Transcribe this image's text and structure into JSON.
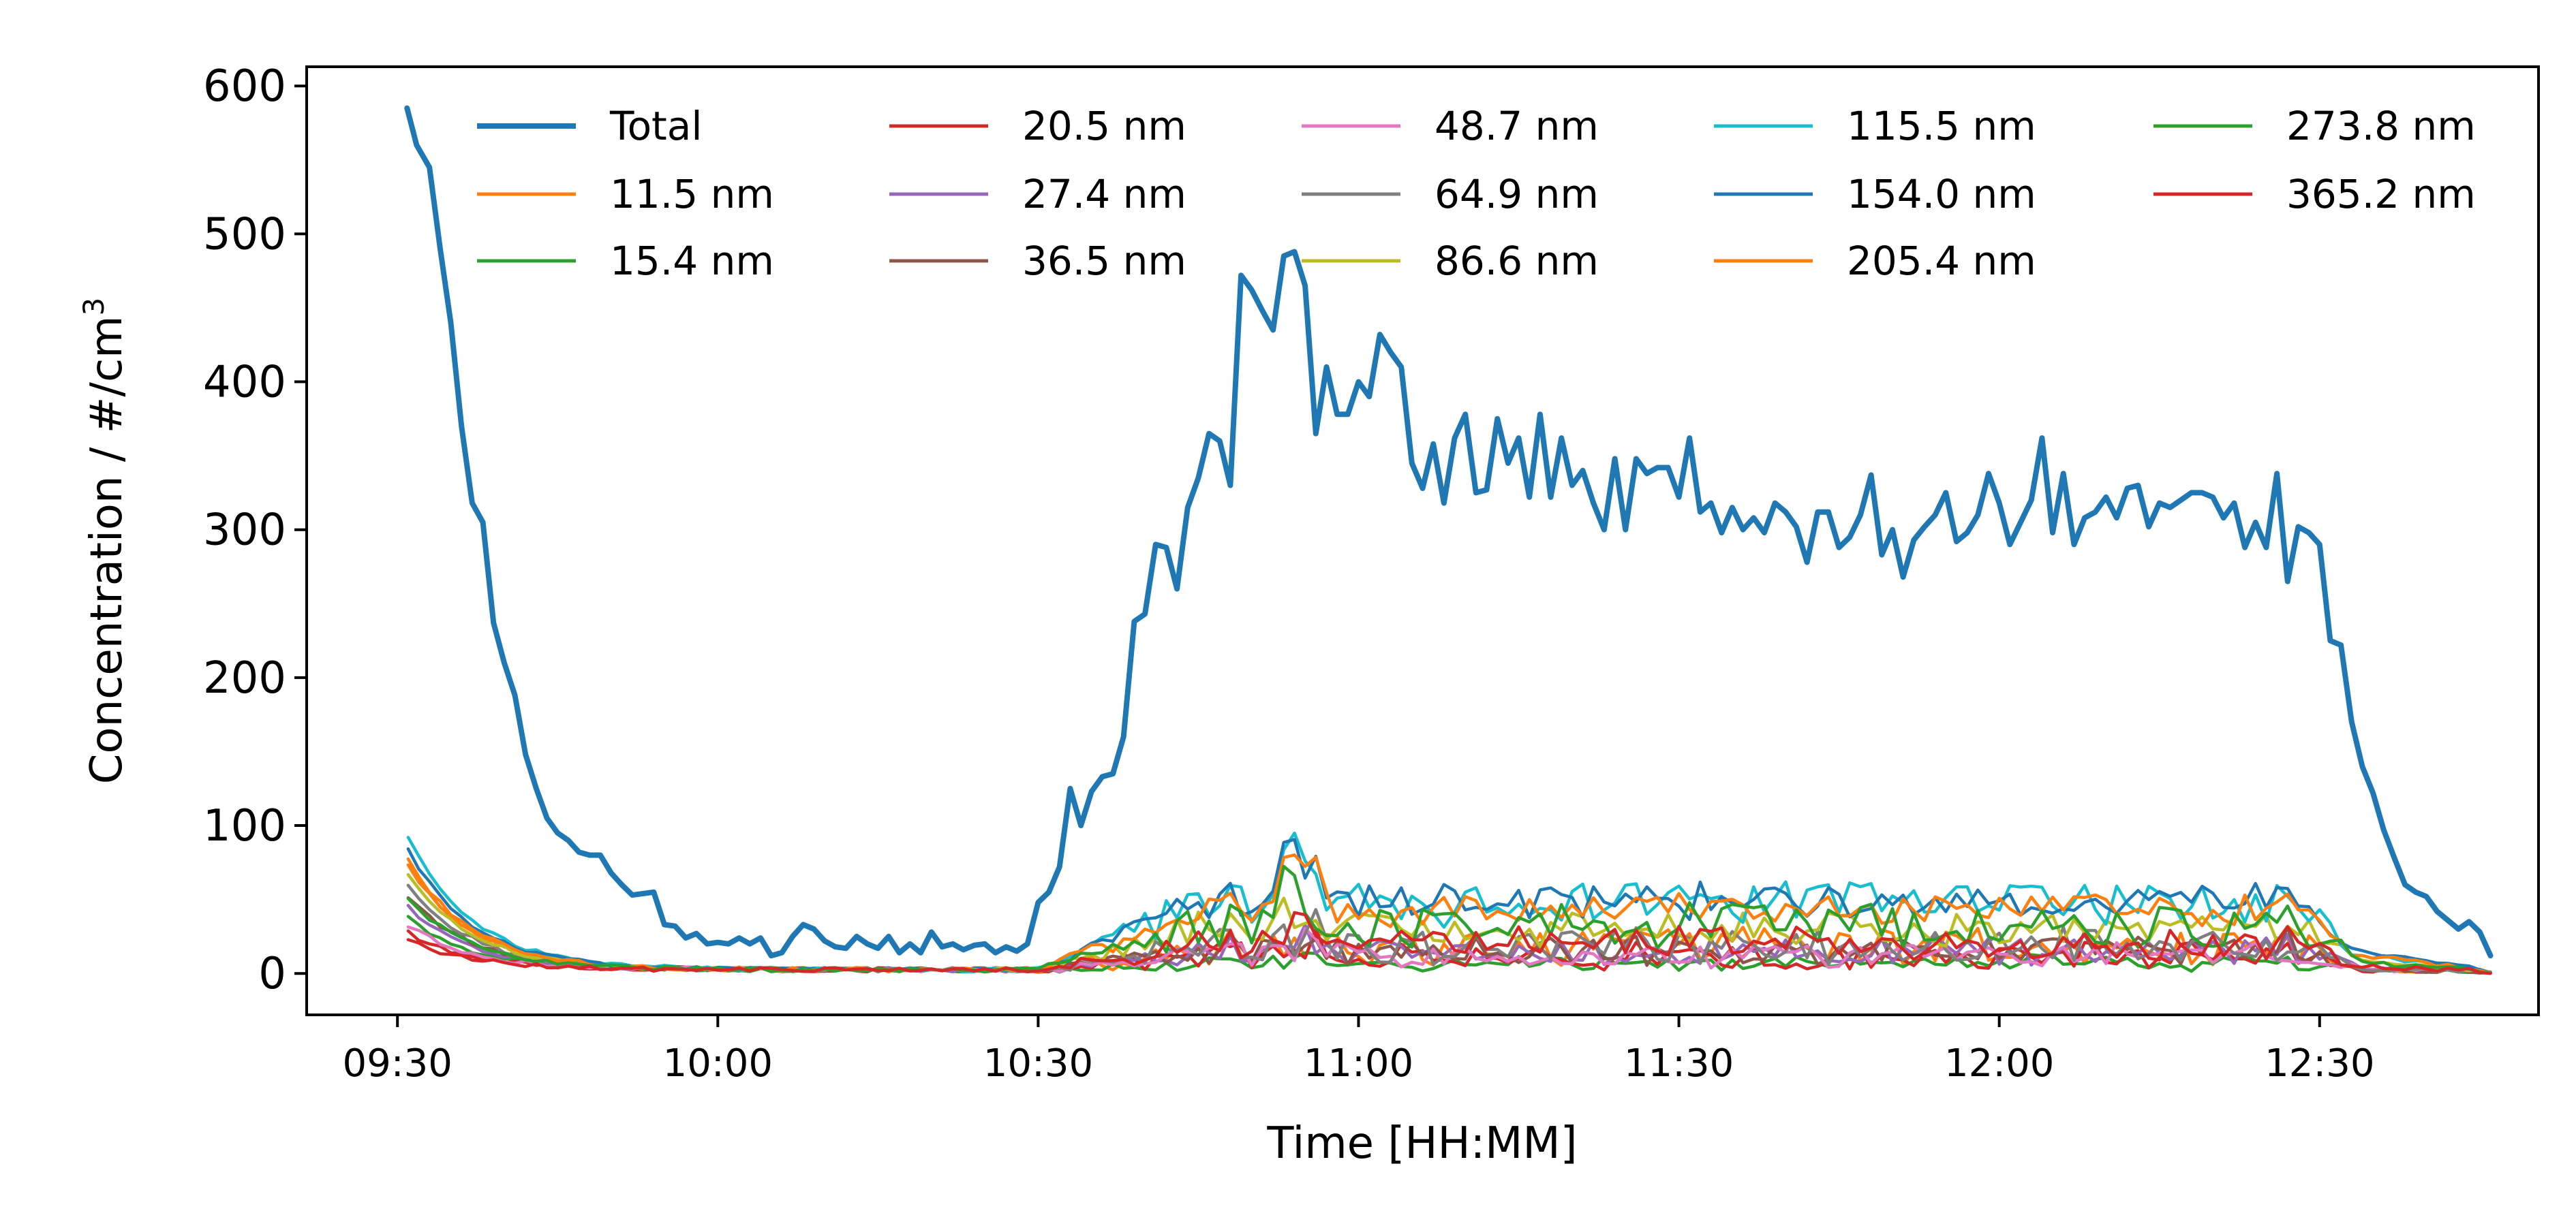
{
  "chart_data": {
    "type": "line",
    "xlabel": "Time [HH:MM]",
    "ylabel": "Concentration / #/cm",
    "ylabel_superscript": "3",
    "x_ticks": [
      "09:30",
      "10:00",
      "10:30",
      "11:00",
      "11:30",
      "12:00",
      "12:30"
    ],
    "x_tick_minutes": [
      0,
      30,
      60,
      90,
      120,
      150,
      180
    ],
    "xlim": [
      -8.5,
      200.5
    ],
    "ylim": [
      -28,
      613
    ],
    "y_ticks": [
      0,
      100,
      200,
      300,
      400,
      500,
      600
    ],
    "legend_position": "top (inside), 5 columns",
    "series": [
      {
        "name": "Total",
        "color": "#1f77b4",
        "emphasis": true,
        "points": [
          [
            0.9,
            585
          ],
          [
            1.8,
            560
          ],
          [
            3,
            545
          ],
          [
            4,
            490
          ],
          [
            5,
            440
          ],
          [
            6,
            370
          ],
          [
            7,
            318
          ],
          [
            8,
            305
          ],
          [
            9,
            237
          ],
          [
            10,
            210
          ],
          [
            11,
            188
          ],
          [
            12,
            148
          ],
          [
            13,
            125
          ],
          [
            14,
            105
          ],
          [
            15,
            95
          ],
          [
            16,
            90
          ],
          [
            17,
            82
          ],
          [
            18,
            80
          ],
          [
            19,
            80
          ],
          [
            20,
            68
          ],
          [
            21,
            60
          ],
          [
            22,
            53
          ],
          [
            23,
            54
          ],
          [
            24,
            55
          ],
          [
            25,
            33
          ],
          [
            26,
            32
          ],
          [
            27,
            24
          ],
          [
            28,
            27
          ],
          [
            29,
            20
          ],
          [
            30,
            21
          ],
          [
            31,
            20
          ],
          [
            32,
            24
          ],
          [
            33,
            20
          ],
          [
            34,
            24
          ],
          [
            35,
            12
          ],
          [
            36,
            14
          ],
          [
            37,
            25
          ],
          [
            38,
            33
          ],
          [
            39,
            30
          ],
          [
            40,
            22
          ],
          [
            41,
            18
          ],
          [
            42,
            17
          ],
          [
            43,
            25
          ],
          [
            44,
            20
          ],
          [
            45,
            17
          ],
          [
            46,
            25
          ],
          [
            47,
            14
          ],
          [
            48,
            20
          ],
          [
            49,
            14
          ],
          [
            50,
            28
          ],
          [
            51,
            18
          ],
          [
            52,
            20
          ],
          [
            53,
            16
          ],
          [
            54,
            19
          ],
          [
            55,
            20
          ],
          [
            56,
            14
          ],
          [
            57,
            18
          ],
          [
            58,
            15
          ],
          [
            59,
            20
          ],
          [
            60,
            48
          ],
          [
            61,
            55
          ],
          [
            62,
            72
          ],
          [
            63,
            125
          ],
          [
            64,
            100
          ],
          [
            65,
            123
          ],
          [
            66,
            133
          ],
          [
            67,
            135
          ],
          [
            68,
            160
          ],
          [
            69,
            238
          ],
          [
            70,
            243
          ],
          [
            71,
            290
          ],
          [
            72,
            288
          ],
          [
            73,
            260
          ],
          [
            74,
            315
          ],
          [
            75,
            335
          ],
          [
            76,
            365
          ],
          [
            77,
            360
          ],
          [
            78,
            330
          ],
          [
            79,
            472
          ],
          [
            80,
            462
          ],
          [
            81,
            448
          ],
          [
            82,
            435
          ],
          [
            83,
            485
          ],
          [
            84,
            488
          ],
          [
            85,
            465
          ],
          [
            86,
            365
          ],
          [
            87,
            410
          ],
          [
            88,
            378
          ],
          [
            89,
            378
          ],
          [
            90,
            400
          ],
          [
            91,
            390
          ],
          [
            92,
            432
          ],
          [
            93,
            420
          ],
          [
            94,
            410
          ],
          [
            95,
            345
          ],
          [
            96,
            328
          ],
          [
            97,
            358
          ],
          [
            98,
            318
          ],
          [
            99,
            362
          ],
          [
            100,
            378
          ],
          [
            101,
            325
          ],
          [
            102,
            327
          ],
          [
            103,
            375
          ],
          [
            104,
            345
          ],
          [
            105,
            362
          ],
          [
            106,
            322
          ],
          [
            107,
            378
          ],
          [
            108,
            322
          ],
          [
            109,
            362
          ],
          [
            110,
            330
          ],
          [
            111,
            340
          ],
          [
            112,
            318
          ],
          [
            113,
            300
          ],
          [
            114,
            348
          ],
          [
            115,
            300
          ],
          [
            116,
            348
          ],
          [
            117,
            338
          ],
          [
            118,
            342
          ],
          [
            119,
            342
          ],
          [
            120,
            322
          ],
          [
            121,
            362
          ],
          [
            122,
            312
          ],
          [
            123,
            318
          ],
          [
            124,
            298
          ],
          [
            125,
            315
          ],
          [
            126,
            300
          ],
          [
            127,
            308
          ],
          [
            128,
            298
          ],
          [
            129,
            318
          ],
          [
            130,
            312
          ],
          [
            131,
            302
          ],
          [
            132,
            278
          ],
          [
            133,
            312
          ],
          [
            134,
            312
          ],
          [
            135,
            288
          ],
          [
            136,
            295
          ],
          [
            137,
            310
          ],
          [
            138,
            337
          ],
          [
            139,
            283
          ],
          [
            140,
            300
          ],
          [
            141,
            268
          ],
          [
            142,
            293
          ],
          [
            143,
            302
          ],
          [
            144,
            310
          ],
          [
            145,
            325
          ],
          [
            146,
            292
          ],
          [
            147,
            298
          ],
          [
            148,
            310
          ],
          [
            149,
            338
          ],
          [
            150,
            318
          ],
          [
            151,
            290
          ],
          [
            152,
            305
          ],
          [
            153,
            320
          ],
          [
            154,
            362
          ],
          [
            155,
            298
          ],
          [
            156,
            338
          ],
          [
            157,
            290
          ],
          [
            158,
            308
          ],
          [
            159,
            312
          ],
          [
            160,
            322
          ],
          [
            161,
            308
          ],
          [
            162,
            328
          ],
          [
            163,
            330
          ],
          [
            164,
            302
          ],
          [
            165,
            318
          ],
          [
            166,
            315
          ],
          [
            167,
            320
          ],
          [
            168,
            325
          ],
          [
            169,
            325
          ],
          [
            170,
            322
          ],
          [
            171,
            308
          ],
          [
            172,
            318
          ],
          [
            173,
            288
          ],
          [
            174,
            305
          ],
          [
            175,
            288
          ],
          [
            176,
            338
          ],
          [
            177,
            265
          ],
          [
            178,
            302
          ],
          [
            179,
            298
          ],
          [
            180,
            290
          ],
          [
            181,
            225
          ],
          [
            182,
            222
          ],
          [
            183,
            170
          ],
          [
            184,
            140
          ],
          [
            185,
            122
          ],
          [
            186,
            97
          ],
          [
            187,
            78
          ],
          [
            188,
            60
          ],
          [
            189,
            55
          ],
          [
            190,
            52
          ],
          [
            191,
            42
          ],
          [
            192,
            36
          ],
          [
            193,
            30
          ],
          [
            194,
            35
          ],
          [
            195,
            28
          ],
          [
            196,
            12
          ]
        ]
      },
      {
        "name": "11.5 nm",
        "color": "#ff7f0e",
        "band": [
          3,
          28
        ],
        "early": 70
      },
      {
        "name": "15.4 nm",
        "color": "#2ca02c",
        "band": [
          1,
          9
        ],
        "early": 35
      },
      {
        "name": "20.5 nm",
        "color": "#d62728",
        "band": [
          2,
          18
        ],
        "early": 25
      },
      {
        "name": "27.4 nm",
        "color": "#9467bd",
        "band": [
          3,
          22
        ],
        "early": 42
      },
      {
        "name": "36.5 nm",
        "color": "#8c564b",
        "band": [
          4,
          24
        ],
        "early": 50
      },
      {
        "name": "48.7 nm",
        "color": "#e377c2",
        "band": [
          3,
          18
        ],
        "early": 30
      },
      {
        "name": "64.9 nm",
        "color": "#7f7f7f",
        "band": [
          5,
          28
        ],
        "early": 58
      },
      {
        "name": "86.6 nm",
        "color": "#bcbd22",
        "band": [
          18,
          40
        ],
        "early": 65
      },
      {
        "name": "115.5 nm",
        "color": "#17becf",
        "band": [
          30,
          60
        ],
        "early": 90
      },
      {
        "name": "154.0 nm",
        "color": "#1f77b4",
        "band": [
          35,
          58
        ],
        "early": 82
      },
      {
        "name": "205.4 nm",
        "color": "#ff7f0e",
        "band": [
          30,
          52
        ],
        "early": 75
      },
      {
        "name": "273.8 nm",
        "color": "#2ca02c",
        "band": [
          15,
          45
        ],
        "early": 48
      },
      {
        "name": "365.2 nm",
        "color": "#d62728",
        "band": [
          8,
          28
        ],
        "early": 20
      }
    ]
  }
}
